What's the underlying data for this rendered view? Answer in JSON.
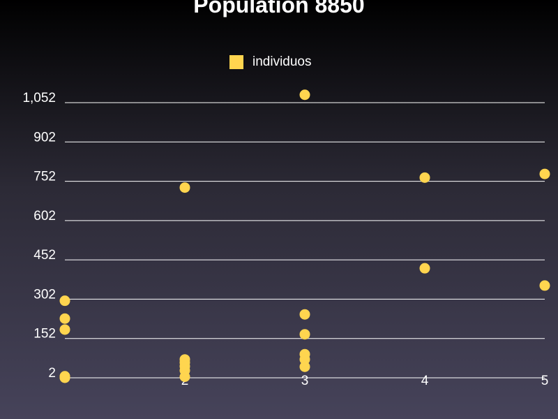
{
  "chart_data": {
    "type": "scatter",
    "title": "Population 8850",
    "xlabel": "",
    "ylabel": "",
    "legend": {
      "position": "top-center",
      "entries": [
        "individuos"
      ]
    },
    "grid": true,
    "x_ticks": [
      "",
      "2",
      "3",
      "4",
      "5"
    ],
    "y_ticks": [
      "2",
      "152",
      "302",
      "452",
      "602",
      "752",
      "902",
      "1,052"
    ],
    "xlim": [
      1,
      5
    ],
    "ylim": [
      2,
      1052
    ],
    "series": [
      {
        "name": "individuos",
        "color": "#ffd54f",
        "points": [
          {
            "x": 1,
            "y": 296
          },
          {
            "x": 1,
            "y": 228
          },
          {
            "x": 1,
            "y": 186
          },
          {
            "x": 1,
            "y": 8
          },
          {
            "x": 1,
            "y": 2
          },
          {
            "x": 2,
            "y": 728
          },
          {
            "x": 2,
            "y": 72
          },
          {
            "x": 2,
            "y": 60
          },
          {
            "x": 2,
            "y": 46
          },
          {
            "x": 2,
            "y": 30
          },
          {
            "x": 2,
            "y": 6
          },
          {
            "x": 3,
            "y": 1082
          },
          {
            "x": 3,
            "y": 244
          },
          {
            "x": 3,
            "y": 168
          },
          {
            "x": 3,
            "y": 92
          },
          {
            "x": 3,
            "y": 72
          },
          {
            "x": 3,
            "y": 44
          },
          {
            "x": 4,
            "y": 766
          },
          {
            "x": 4,
            "y": 420
          },
          {
            "x": 5,
            "y": 780
          },
          {
            "x": 5,
            "y": 354
          }
        ]
      }
    ]
  }
}
